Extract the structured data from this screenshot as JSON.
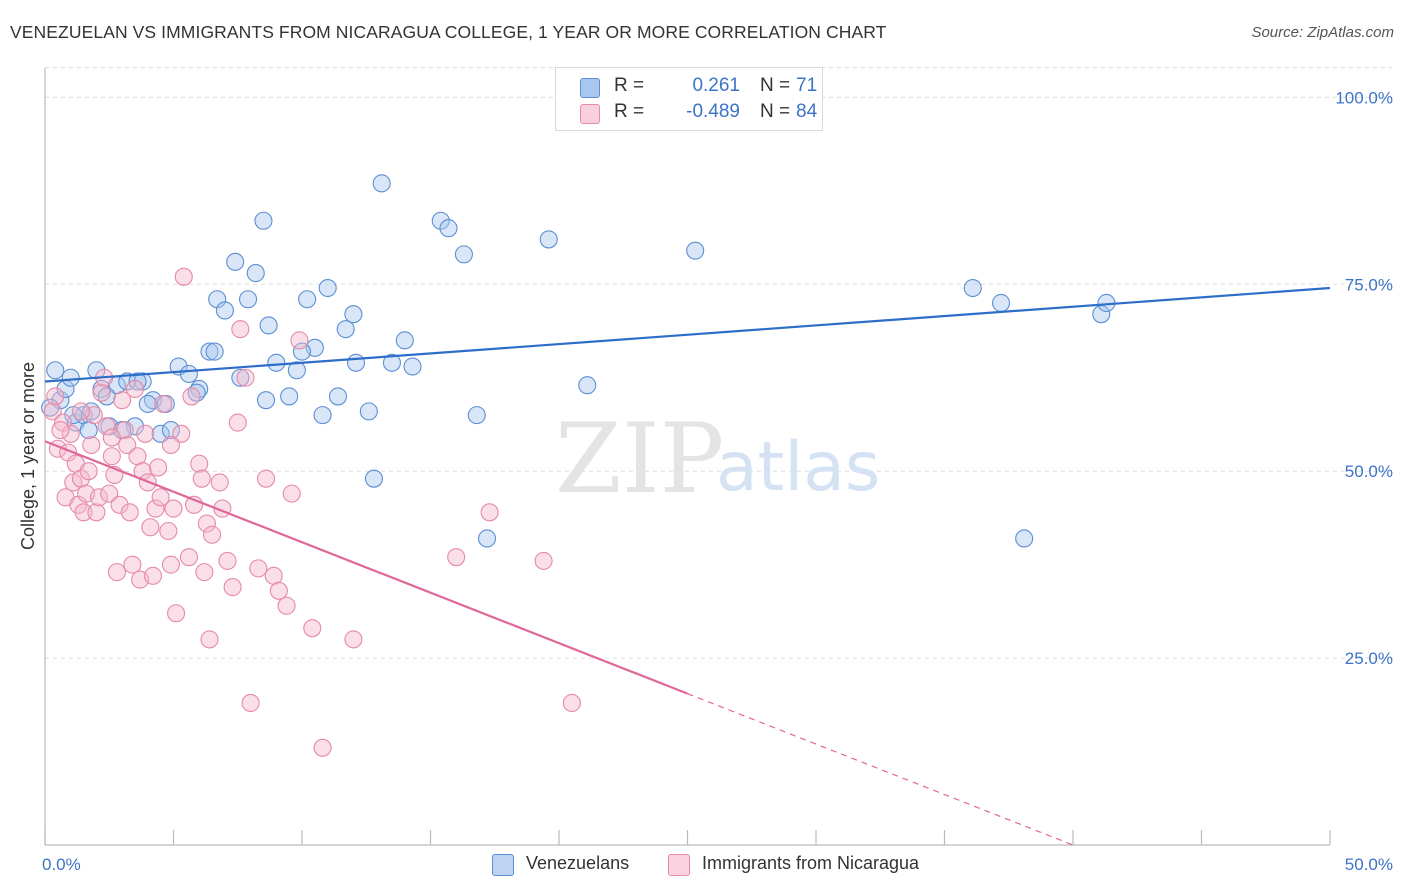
{
  "header": {
    "title": "VENEZUELAN VS IMMIGRANTS FROM NICARAGUA COLLEGE, 1 YEAR OR MORE CORRELATION CHART",
    "source": "Source: ZipAtlas.com"
  },
  "watermark": {
    "zip": "ZIP",
    "atlas": "atlas"
  },
  "legend": {
    "rows": [
      {
        "r_label": "R =",
        "r_value": "0.261",
        "n_label": "N =",
        "n_value": "71"
      },
      {
        "r_label": "R =",
        "r_value": "-0.489",
        "n_label": "N =",
        "n_value": "84"
      }
    ]
  },
  "bottom_legend": {
    "series1": "Venezuelans",
    "series2": "Immigrants from Nicaragua"
  },
  "colors": {
    "blue_fill": "#a9c7ee",
    "blue_stroke": "#5b8fd4",
    "blue_line": "#2e6dc9",
    "pink_fill": "#f5b8cc",
    "pink_stroke": "#e58aa8",
    "pink_line": "#e0679a",
    "tick_text": "#3d73c7",
    "grid": "#dddddd"
  },
  "chart_data": {
    "type": "scatter",
    "title": "VENEZUELAN VS IMMIGRANTS FROM NICARAGUA COLLEGE, 1 YEAR OR MORE CORRELATION CHART",
    "ylabel": "College, 1 year or more",
    "xlabel": "",
    "xlim": [
      0,
      50
    ],
    "ylim": [
      0,
      105
    ],
    "x_tick_labels": [
      "0.0%",
      "50.0%"
    ],
    "y_ticks": [
      {
        "value": 25,
        "label": "25.0%"
      },
      {
        "value": 50,
        "label": "50.0%"
      },
      {
        "value": 75,
        "label": "75.0%"
      },
      {
        "value": 100,
        "label": "100.0%"
      }
    ],
    "grid": true,
    "series": [
      {
        "name": "Venezuelans",
        "r": 0.261,
        "n": 71,
        "trend": {
          "x0": 0,
          "y0": 62.0,
          "x1": 50,
          "y1": 74.5,
          "dashed_from": null
        },
        "points": [
          [
            0.4,
            63.5
          ],
          [
            0.6,
            59.5
          ],
          [
            0.8,
            61.0
          ],
          [
            1.0,
            62.5
          ],
          [
            1.2,
            56.5
          ],
          [
            1.5,
            57.5
          ],
          [
            1.8,
            58.0
          ],
          [
            2.0,
            63.5
          ],
          [
            2.2,
            61.0
          ],
          [
            2.5,
            56.0
          ],
          [
            2.8,
            61.5
          ],
          [
            3.2,
            62.0
          ],
          [
            3.5,
            56.0
          ],
          [
            3.8,
            62.0
          ],
          [
            4.2,
            59.5
          ],
          [
            4.5,
            55.0
          ],
          [
            4.9,
            55.5
          ],
          [
            5.2,
            64.0
          ],
          [
            5.6,
            63.0
          ],
          [
            6.0,
            61.0
          ],
          [
            6.4,
            66.0
          ],
          [
            6.7,
            73.0
          ],
          [
            7.0,
            71.5
          ],
          [
            7.4,
            78.0
          ],
          [
            7.9,
            73.0
          ],
          [
            8.2,
            76.5
          ],
          [
            8.5,
            83.5
          ],
          [
            8.7,
            69.5
          ],
          [
            9.0,
            64.5
          ],
          [
            9.5,
            60.0
          ],
          [
            10.2,
            73.0
          ],
          [
            10.5,
            66.5
          ],
          [
            10.8,
            57.5
          ],
          [
            11.0,
            74.5
          ],
          [
            11.4,
            60.0
          ],
          [
            11.7,
            69.0
          ],
          [
            12.0,
            71.0
          ],
          [
            12.6,
            58.0
          ],
          [
            12.8,
            49.0
          ],
          [
            13.1,
            88.5
          ],
          [
            13.5,
            64.5
          ],
          [
            14.0,
            67.5
          ],
          [
            15.4,
            83.5
          ],
          [
            15.7,
            82.5
          ],
          [
            16.3,
            79.0
          ],
          [
            16.8,
            57.5
          ],
          [
            17.2,
            41.0
          ],
          [
            19.6,
            81.0
          ],
          [
            21.1,
            61.5
          ],
          [
            25.3,
            79.5
          ],
          [
            36.1,
            74.5
          ],
          [
            37.2,
            72.5
          ],
          [
            38.1,
            41.0
          ],
          [
            41.1,
            71.0
          ],
          [
            41.3,
            72.5
          ],
          [
            4.0,
            59.0
          ],
          [
            5.9,
            60.5
          ],
          [
            7.6,
            62.5
          ],
          [
            9.8,
            63.5
          ],
          [
            3.0,
            55.5
          ],
          [
            1.1,
            57.5
          ],
          [
            2.4,
            60.0
          ],
          [
            6.6,
            66.0
          ],
          [
            8.6,
            59.5
          ],
          [
            12.1,
            64.5
          ],
          [
            0.2,
            58.5
          ],
          [
            4.7,
            59.0
          ],
          [
            3.6,
            62.0
          ],
          [
            10.0,
            66.0
          ],
          [
            14.3,
            64.0
          ],
          [
            1.7,
            55.5
          ]
        ]
      },
      {
        "name": "Immigrants from Nicaragua",
        "r": -0.489,
        "n": 84,
        "trend": {
          "x0": 0,
          "y0": 54.0,
          "x1": 40,
          "y1": 0.0,
          "dashed_from": 25
        },
        "points": [
          [
            0.3,
            58.0
          ],
          [
            0.5,
            53.0
          ],
          [
            0.7,
            56.5
          ],
          [
            0.8,
            46.5
          ],
          [
            0.9,
            52.5
          ],
          [
            1.0,
            55.0
          ],
          [
            1.1,
            48.5
          ],
          [
            1.2,
            51.0
          ],
          [
            1.3,
            45.5
          ],
          [
            1.4,
            49.0
          ],
          [
            1.5,
            44.5
          ],
          [
            1.6,
            47.0
          ],
          [
            1.7,
            50.0
          ],
          [
            1.8,
            53.5
          ],
          [
            1.9,
            57.5
          ],
          [
            2.0,
            44.5
          ],
          [
            2.1,
            46.5
          ],
          [
            2.2,
            60.5
          ],
          [
            2.3,
            62.5
          ],
          [
            2.4,
            56.0
          ],
          [
            2.5,
            47.0
          ],
          [
            2.6,
            52.0
          ],
          [
            2.7,
            49.5
          ],
          [
            2.8,
            36.5
          ],
          [
            2.9,
            45.5
          ],
          [
            3.0,
            59.5
          ],
          [
            3.1,
            55.5
          ],
          [
            3.2,
            53.5
          ],
          [
            3.3,
            44.5
          ],
          [
            3.4,
            37.5
          ],
          [
            3.6,
            52.0
          ],
          [
            3.7,
            35.5
          ],
          [
            3.8,
            50.0
          ],
          [
            3.9,
            55.0
          ],
          [
            4.0,
            48.5
          ],
          [
            4.1,
            42.5
          ],
          [
            4.2,
            36.0
          ],
          [
            4.3,
            45.0
          ],
          [
            4.4,
            50.5
          ],
          [
            4.5,
            46.5
          ],
          [
            4.6,
            59.0
          ],
          [
            4.8,
            42.0
          ],
          [
            4.9,
            37.5
          ],
          [
            5.0,
            45.0
          ],
          [
            5.1,
            31.0
          ],
          [
            5.3,
            55.0
          ],
          [
            5.4,
            76.0
          ],
          [
            5.6,
            38.5
          ],
          [
            5.8,
            45.5
          ],
          [
            6.0,
            51.0
          ],
          [
            6.1,
            49.0
          ],
          [
            6.2,
            36.5
          ],
          [
            6.3,
            43.0
          ],
          [
            6.4,
            27.5
          ],
          [
            6.5,
            41.5
          ],
          [
            6.9,
            45.0
          ],
          [
            7.1,
            38.0
          ],
          [
            7.5,
            56.5
          ],
          [
            7.6,
            69.0
          ],
          [
            7.8,
            62.5
          ],
          [
            8.0,
            19.0
          ],
          [
            8.3,
            37.0
          ],
          [
            8.6,
            49.0
          ],
          [
            8.9,
            36.0
          ],
          [
            9.1,
            34.0
          ],
          [
            9.4,
            32.0
          ],
          [
            9.6,
            47.0
          ],
          [
            9.9,
            67.5
          ],
          [
            10.4,
            29.0
          ],
          [
            10.8,
            13.0
          ],
          [
            12.0,
            27.5
          ],
          [
            16.0,
            38.5
          ],
          [
            17.3,
            44.5
          ],
          [
            19.4,
            38.0
          ],
          [
            20.5,
            19.0
          ],
          [
            0.6,
            55.5
          ],
          [
            1.4,
            58.0
          ],
          [
            2.6,
            54.5
          ],
          [
            3.5,
            61.0
          ],
          [
            4.9,
            53.5
          ],
          [
            5.7,
            60.0
          ],
          [
            6.8,
            48.5
          ],
          [
            0.4,
            60.0
          ],
          [
            7.3,
            34.5
          ]
        ]
      }
    ]
  }
}
